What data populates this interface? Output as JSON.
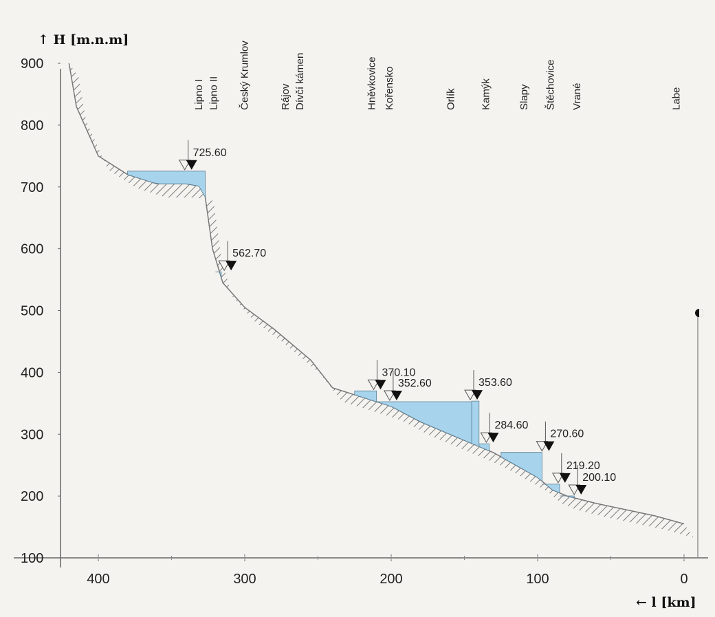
{
  "chart_data": {
    "type": "area",
    "title": "",
    "ylabel": "↑ H [m.n.m]",
    "xlabel": "← l [km]",
    "xlim": [
      420,
      0
    ],
    "ylim": [
      100,
      900
    ],
    "x_ticks": [
      400,
      300,
      200,
      100,
      0
    ],
    "y_ticks": [
      900,
      800,
      700,
      600,
      500,
      400,
      300,
      200,
      100
    ],
    "stations": [
      {
        "name": "Lipno I",
        "km": 329
      },
      {
        "name": "Lipno II",
        "km": 319
      },
      {
        "name": "Český Krumlov",
        "km": 298
      },
      {
        "name": "Rájov",
        "km": 270
      },
      {
        "name": "Dívčí kámen",
        "km": 260
      },
      {
        "name": "Hněvkovice",
        "km": 211
      },
      {
        "name": "Kořensko",
        "km": 199
      },
      {
        "name": "Orlík",
        "km": 157
      },
      {
        "name": "Kamýk",
        "km": 133
      },
      {
        "name": "Slapy",
        "km": 107
      },
      {
        "name": "Štěchovice",
        "km": 89
      },
      {
        "name": "Vrané",
        "km": 71
      },
      {
        "name": "Labe",
        "km": 3
      }
    ],
    "riverbed": [
      [
        420,
        900
      ],
      [
        415,
        830
      ],
      [
        400,
        750
      ],
      [
        380,
        720
      ],
      [
        360,
        705
      ],
      [
        340,
        705
      ],
      [
        328,
        700
      ],
      [
        322,
        600
      ],
      [
        315,
        545
      ],
      [
        300,
        505
      ],
      [
        280,
        470
      ],
      [
        255,
        420
      ],
      [
        240,
        375
      ],
      [
        220,
        360
      ],
      [
        200,
        345
      ],
      [
        180,
        320
      ],
      [
        160,
        300
      ],
      [
        145,
        285
      ],
      [
        130,
        270
      ],
      [
        115,
        250
      ],
      [
        100,
        230
      ],
      [
        90,
        210
      ],
      [
        80,
        200
      ],
      [
        60,
        188
      ],
      [
        40,
        178
      ],
      [
        20,
        168
      ],
      [
        0,
        155
      ]
    ],
    "reservoirs": [
      {
        "from": 380,
        "to": 327,
        "level": 725.6
      },
      {
        "from": 320,
        "to": 316,
        "level": 562.7
      },
      {
        "from": 225,
        "to": 210,
        "level": 370.1
      },
      {
        "from": 210,
        "to": 145,
        "level": 352.6
      },
      {
        "from": 145,
        "to": 140,
        "level": 353.6
      },
      {
        "from": 140,
        "to": 133,
        "level": 284.6
      },
      {
        "from": 125,
        "to": 97,
        "level": 270.6
      },
      {
        "from": 97,
        "to": 85,
        "level": 219.2
      },
      {
        "from": 85,
        "to": 75,
        "level": 200.1
      }
    ],
    "level_labels": [
      {
        "text": "725.60",
        "km": 341
      },
      {
        "text": "562.70",
        "km": 314
      },
      {
        "text": "370.10",
        "km": 212
      },
      {
        "text": "352.60",
        "km": 201
      },
      {
        "text": "353.60",
        "km": 146
      },
      {
        "text": "284.60",
        "km": 135
      },
      {
        "text": "270.60",
        "km": 97
      },
      {
        "text": "219.20",
        "km": 86
      },
      {
        "text": "200.10",
        "km": 75
      }
    ],
    "colors": {
      "water": "#a7d3ec",
      "hatch": "#777777",
      "axis": "#555555"
    }
  }
}
